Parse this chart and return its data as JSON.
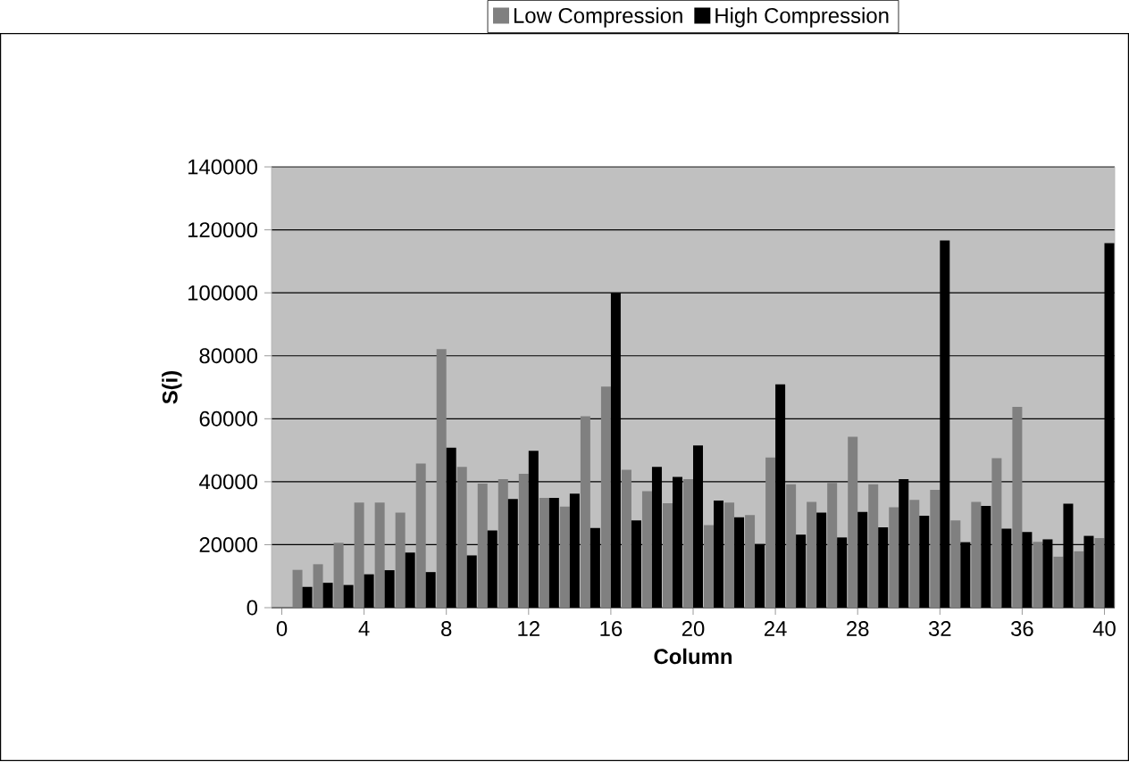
{
  "chart_data": {
    "type": "bar",
    "xlabel": "Column",
    "ylabel": "S(i)",
    "categories": [
      "0",
      null,
      null,
      null,
      "4",
      null,
      null,
      null,
      "8",
      null,
      null,
      null,
      "12",
      null,
      null,
      null,
      "16",
      null,
      null,
      null,
      "20",
      null,
      null,
      null,
      "24",
      null,
      null,
      null,
      "28",
      null,
      null,
      null,
      "32",
      null,
      null,
      null,
      "36",
      null,
      null,
      null,
      "40"
    ],
    "series": [
      {
        "name": "Low Compression",
        "color": "#808080",
        "values": [
          null,
          12000,
          13800,
          20600,
          33400,
          33400,
          30200,
          45800,
          82100,
          44700,
          39400,
          40800,
          42500,
          34900,
          32100,
          60800,
          70200,
          43800,
          37000,
          33200,
          40800,
          26200,
          33400,
          29400,
          47700,
          39200,
          33600,
          39600,
          54300,
          39200,
          31900,
          34200,
          37400,
          27700,
          33600,
          47500,
          63800,
          20900,
          16200,
          17900,
          22100
        ]
      },
      {
        "name": "High Compression",
        "color": "#000000",
        "values": [
          null,
          6600,
          7900,
          7200,
          10600,
          11900,
          17500,
          11300,
          50800,
          16600,
          24500,
          34500,
          49800,
          34900,
          36200,
          25300,
          100000,
          27700,
          44700,
          41500,
          51500,
          34000,
          28700,
          20200,
          70900,
          23200,
          30200,
          22300,
          30400,
          25500,
          40800,
          29200,
          116600,
          20800,
          32300,
          25100,
          24000,
          21700,
          33000,
          22800,
          115800
        ]
      }
    ],
    "ylim": [
      0,
      140000
    ],
    "yticks": [
      0,
      20000,
      40000,
      60000,
      80000,
      100000,
      120000,
      140000
    ],
    "grid": "y",
    "legend": "top"
  }
}
